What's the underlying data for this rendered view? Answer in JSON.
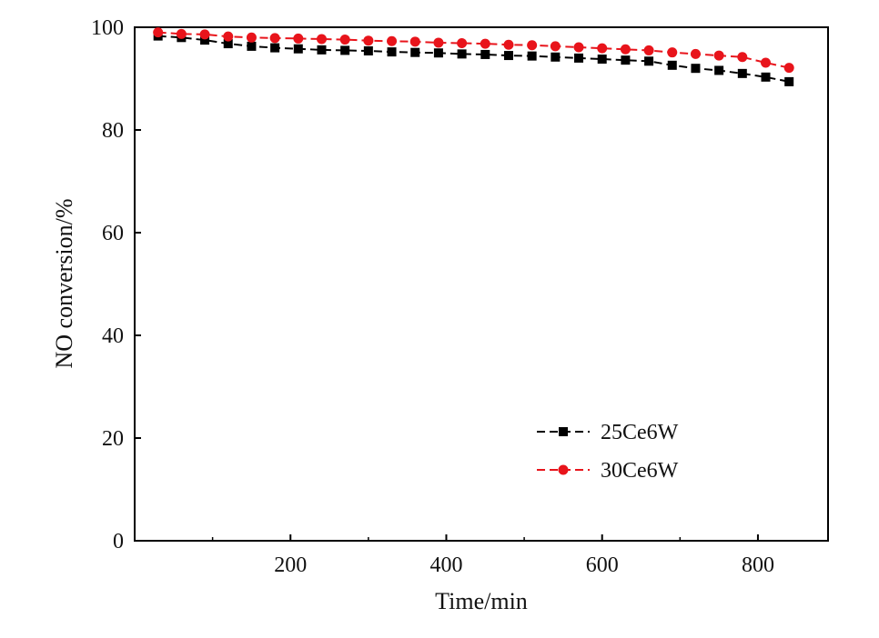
{
  "chart_data": {
    "type": "line",
    "title": "",
    "xlabel": "Time/min",
    "ylabel": "NO conversion/%",
    "xlim": [
      0,
      890
    ],
    "ylim": [
      0,
      100
    ],
    "xticks": [
      200,
      400,
      600,
      800
    ],
    "yticks": [
      0,
      20,
      40,
      60,
      80,
      100
    ],
    "grid": false,
    "legend_position": "lower-right",
    "x": [
      30,
      60,
      90,
      120,
      150,
      180,
      210,
      240,
      270,
      300,
      330,
      360,
      390,
      420,
      450,
      480,
      510,
      540,
      570,
      600,
      630,
      660,
      690,
      720,
      750,
      780,
      810,
      840
    ],
    "series": [
      {
        "name": "25Ce6W",
        "color": "#000000",
        "marker": "square",
        "values": [
          98.3,
          98.0,
          97.5,
          96.8,
          96.3,
          96.0,
          95.8,
          95.6,
          95.5,
          95.4,
          95.2,
          95.1,
          95.0,
          94.8,
          94.7,
          94.5,
          94.4,
          94.2,
          94.0,
          93.8,
          93.6,
          93.4,
          92.6,
          92.0,
          91.6,
          91.0,
          90.3,
          89.4
        ]
      },
      {
        "name": "30Ce6W",
        "color": "#e8141b",
        "marker": "circle",
        "values": [
          99.0,
          98.7,
          98.6,
          98.2,
          98.0,
          97.9,
          97.8,
          97.7,
          97.6,
          97.4,
          97.3,
          97.2,
          97.0,
          96.9,
          96.8,
          96.6,
          96.5,
          96.3,
          96.1,
          95.9,
          95.7,
          95.5,
          95.1,
          94.8,
          94.5,
          94.2,
          93.1,
          92.1
        ]
      }
    ]
  }
}
